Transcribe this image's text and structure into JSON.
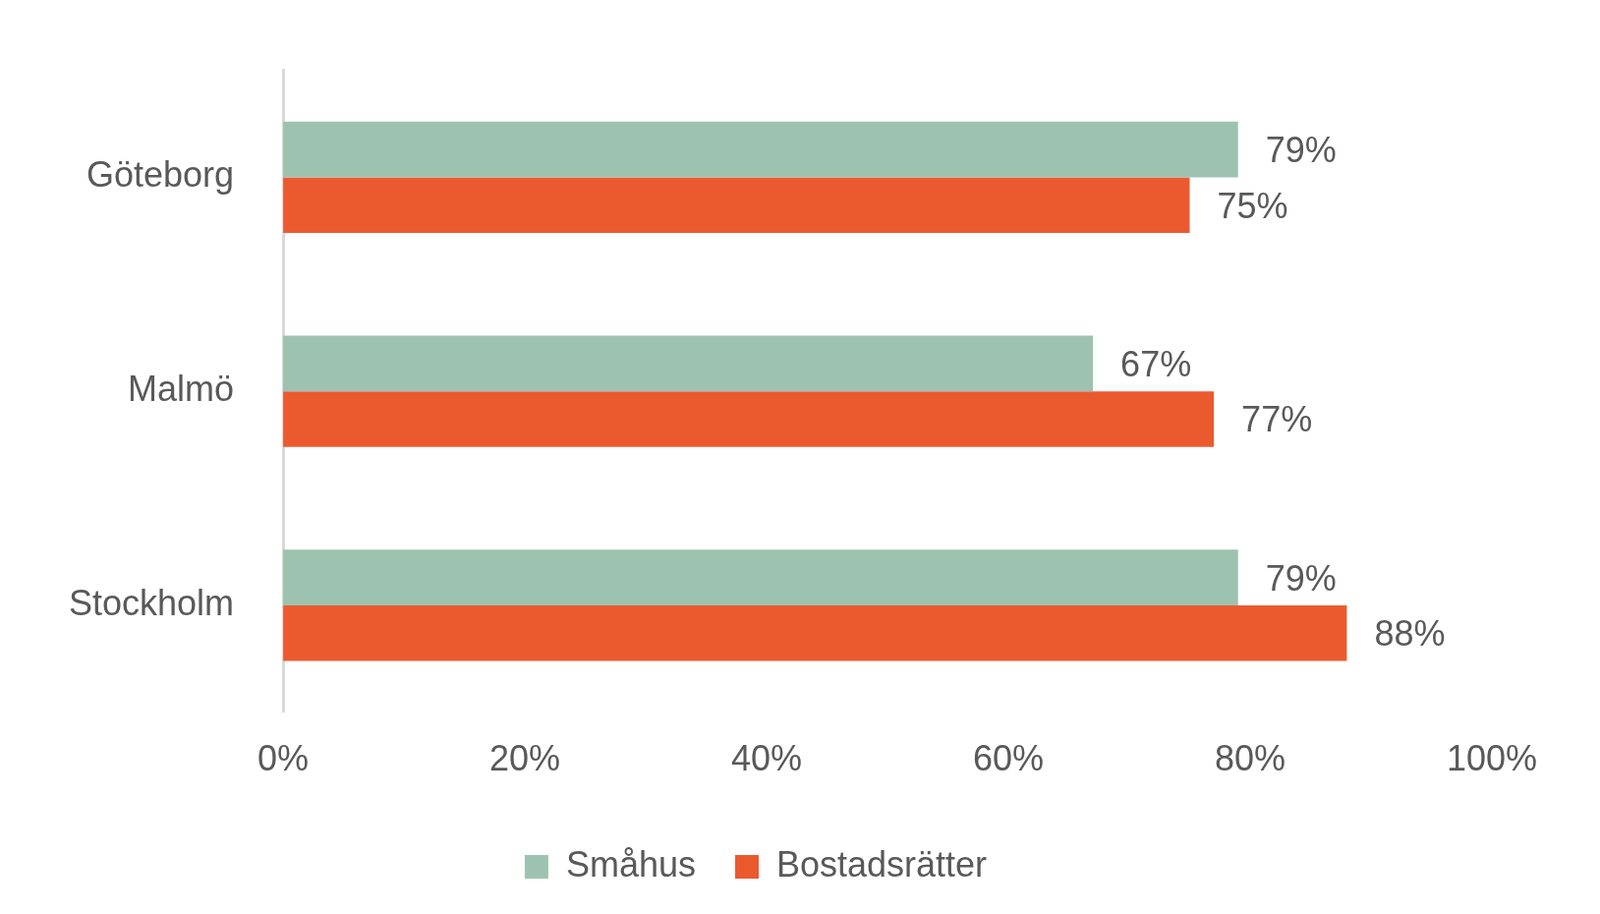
{
  "chart_data": {
    "type": "bar",
    "orientation": "horizontal",
    "categories": [
      "Göteborg",
      "Malmö",
      "Stockholm"
    ],
    "series": [
      {
        "name": "Småhus",
        "color": "#9dc3b0",
        "values": [
          79,
          67,
          79
        ],
        "value_labels": [
          "79%",
          "67%",
          "79%"
        ]
      },
      {
        "name": "Bostadsrätter",
        "color": "#eb5a2f",
        "values": [
          75,
          77,
          88
        ],
        "value_labels": [
          "75%",
          "77%",
          "88%"
        ]
      }
    ],
    "xlim": [
      0,
      100
    ],
    "xticks": [
      {
        "value": 0,
        "label": "0%"
      },
      {
        "value": 20,
        "label": "20%"
      },
      {
        "value": 40,
        "label": "40%"
      },
      {
        "value": 60,
        "label": "60%"
      },
      {
        "value": 80,
        "label": "80%"
      },
      {
        "value": 100,
        "label": "100%"
      }
    ],
    "grid": false,
    "legend": "bottom",
    "data_labels": true
  }
}
